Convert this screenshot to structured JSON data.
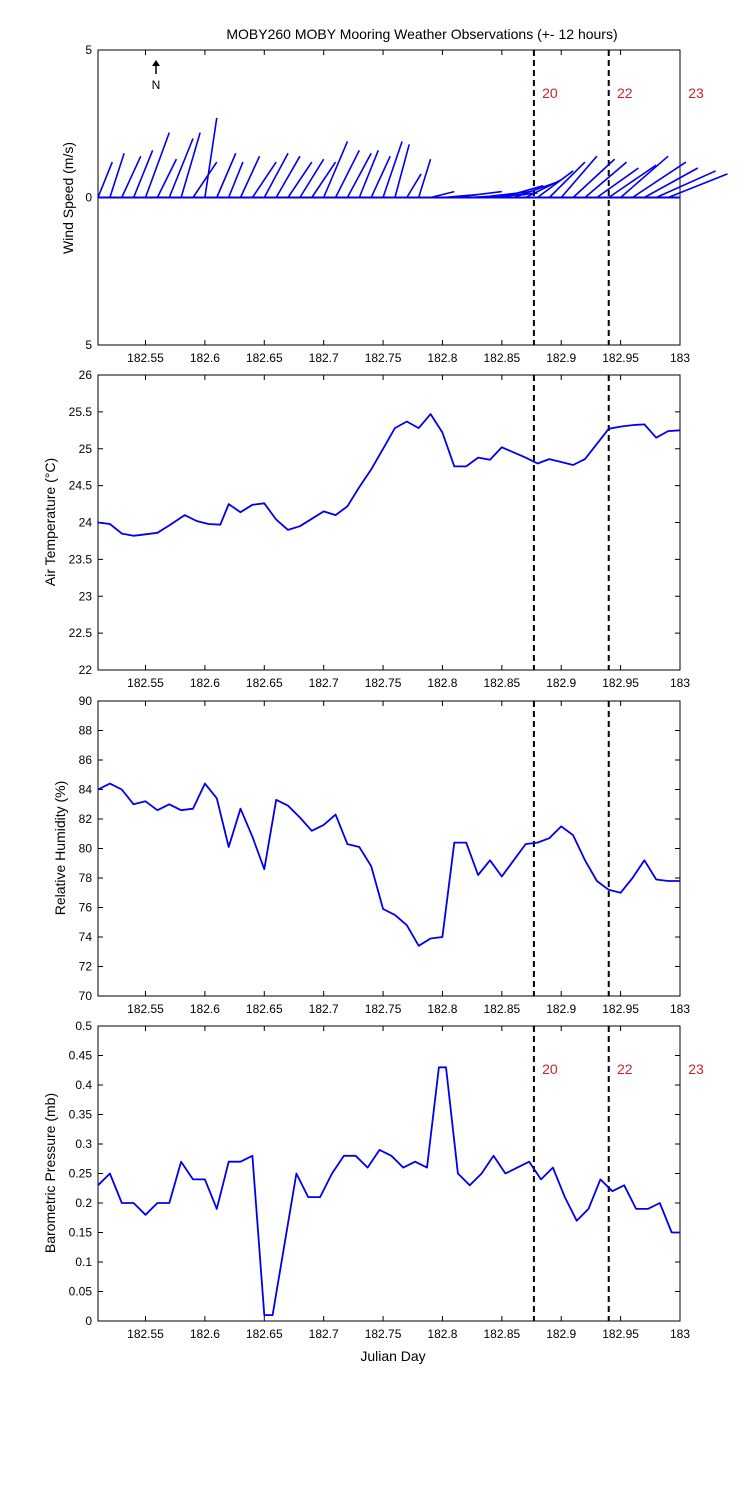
{
  "figure": {
    "title": "MOBY260 MOBY Mooring Weather Observations (+- 12 hours)",
    "xlabel": "Julian Day",
    "north_label": "N"
  },
  "colors": {
    "series": "#0000ee",
    "axis": "#000000",
    "marker_text": "#cc2222",
    "vline": "#000000"
  },
  "chart_data": [
    {
      "id": "wind",
      "type": "line",
      "ylabel": "Wind Speed (m/s)",
      "ylim": [
        -5,
        5
      ],
      "yticks": [
        -5,
        0,
        5
      ],
      "ytick_labels": [
        "5",
        "0",
        "5"
      ],
      "xlim": [
        182.51,
        183
      ],
      "xticks": [
        182.55,
        182.6,
        182.65,
        182.7,
        182.75,
        182.8,
        182.85,
        182.9,
        182.95,
        183
      ],
      "xtick_labels": [
        "182.55",
        "182.6",
        "182.65",
        "182.7",
        "182.75",
        "182.8",
        "182.85",
        "182.9",
        "182.95",
        "183"
      ],
      "note": "wind stick vectors: dx, dy in wind-speed units",
      "x": [
        182.51,
        182.52,
        182.53,
        182.54,
        182.55,
        182.56,
        182.57,
        182.58,
        182.59,
        182.6,
        182.61,
        182.62,
        182.63,
        182.64,
        182.65,
        182.66,
        182.67,
        182.68,
        182.69,
        182.7,
        182.71,
        182.72,
        182.73,
        182.74,
        182.75,
        182.76,
        182.77,
        182.78,
        182.79,
        182.8,
        182.81,
        182.82,
        182.83,
        182.84,
        182.85,
        182.86,
        182.87,
        182.88,
        182.89,
        182.9,
        182.91,
        182.92,
        182.93,
        182.94,
        182.95,
        182.96,
        182.97,
        182.98,
        182.99
      ],
      "u": [
        0.012,
        0.012,
        0.016,
        0.016,
        0.02,
        0.016,
        0.02,
        0.016,
        0.02,
        0.01,
        0.016,
        0.012,
        0.016,
        0.02,
        0.02,
        0.02,
        0.02,
        0.02,
        0.02,
        0.02,
        0.02,
        0.02,
        0.016,
        0.016,
        0.016,
        0.012,
        0.012,
        0.01,
        0.02,
        0.03,
        0.04,
        0.05,
        0.045,
        0.04,
        0.035,
        0.035,
        0.03,
        0.03,
        0.03,
        0.03,
        0.035,
        0.035,
        0.035,
        0.04,
        0.04,
        0.045,
        0.045,
        0.05,
        0.05
      ],
      "v": [
        1.2,
        1.5,
        1.4,
        1.6,
        2.2,
        1.3,
        2.0,
        2.2,
        1.2,
        2.7,
        1.5,
        1.2,
        1.4,
        1.2,
        1.5,
        1.4,
        1.2,
        1.3,
        1.2,
        1.9,
        1.6,
        1.5,
        1.6,
        1.4,
        1.9,
        1.8,
        0.8,
        1.3,
        0.2,
        0.1,
        0.2,
        0.1,
        0.2,
        0.15,
        0.4,
        0.5,
        0.6,
        0.9,
        1.2,
        1.4,
        1.3,
        1.2,
        1.0,
        1.1,
        1.4,
        1.2,
        1.0,
        0.9,
        0.8
      ]
    },
    {
      "id": "air",
      "type": "line",
      "ylabel": "Air Temperature (°C)",
      "ylim": [
        22,
        26
      ],
      "yticks": [
        22,
        22.5,
        23,
        23.5,
        24,
        24.5,
        25,
        25.5,
        26
      ],
      "ytick_labels": [
        "22",
        "22.5",
        "23",
        "23.5",
        "24",
        "24.5",
        "25",
        "25.5",
        "26"
      ],
      "xlim": [
        182.51,
        183
      ],
      "xticks": [
        182.55,
        182.6,
        182.65,
        182.7,
        182.75,
        182.8,
        182.85,
        182.9,
        182.95,
        183
      ],
      "xtick_labels": [
        "182.55",
        "182.6",
        "182.65",
        "182.7",
        "182.75",
        "182.8",
        "182.85",
        "182.9",
        "182.95",
        "183"
      ],
      "x": [
        182.51,
        182.52,
        182.53,
        182.54,
        182.55,
        182.56,
        182.57,
        182.583,
        182.593,
        182.603,
        182.613,
        182.62,
        182.63,
        182.64,
        182.65,
        182.66,
        182.67,
        182.68,
        182.69,
        182.7,
        182.71,
        182.72,
        182.73,
        182.74,
        182.75,
        182.76,
        182.77,
        182.78,
        182.79,
        182.8,
        182.81,
        182.82,
        182.83,
        182.84,
        182.85,
        182.86,
        182.87,
        182.88,
        182.89,
        182.9,
        182.91,
        182.92,
        182.94,
        182.95,
        182.96,
        182.97,
        182.98,
        182.99,
        183.0
      ],
      "y": [
        24.0,
        23.98,
        23.85,
        23.82,
        23.84,
        23.86,
        23.96,
        24.1,
        24.02,
        23.98,
        23.97,
        24.25,
        24.14,
        24.24,
        24.26,
        24.04,
        23.9,
        23.95,
        24.05,
        24.15,
        24.1,
        24.22,
        24.48,
        24.72,
        25.0,
        25.28,
        25.37,
        25.28,
        25.47,
        25.22,
        24.76,
        24.76,
        24.88,
        24.85,
        25.02,
        24.95,
        24.88,
        24.8,
        24.86,
        24.82,
        24.78,
        24.86,
        25.27,
        25.3,
        25.32,
        25.33,
        25.15,
        25.24,
        25.25
      ]
    },
    {
      "id": "rh",
      "type": "line",
      "ylabel": "Relative Humidity (%)",
      "ylim": [
        70,
        90
      ],
      "yticks": [
        70,
        72,
        74,
        76,
        78,
        80,
        82,
        84,
        86,
        88,
        90
      ],
      "ytick_labels": [
        "70",
        "72",
        "74",
        "76",
        "78",
        "80",
        "82",
        "84",
        "86",
        "88",
        "90"
      ],
      "xlim": [
        182.51,
        183
      ],
      "xticks": [
        182.55,
        182.6,
        182.65,
        182.7,
        182.75,
        182.8,
        182.85,
        182.9,
        182.95,
        183
      ],
      "xtick_labels": [
        "182.55",
        "182.6",
        "182.65",
        "182.7",
        "182.75",
        "182.8",
        "182.85",
        "182.9",
        "182.95",
        "183"
      ],
      "x": [
        182.51,
        182.52,
        182.53,
        182.54,
        182.55,
        182.56,
        182.57,
        182.58,
        182.59,
        182.6,
        182.61,
        182.62,
        182.63,
        182.64,
        182.65,
        182.66,
        182.67,
        182.68,
        182.69,
        182.7,
        182.71,
        182.72,
        182.73,
        182.74,
        182.75,
        182.76,
        182.77,
        182.78,
        182.79,
        182.8,
        182.81,
        182.82,
        182.83,
        182.84,
        182.85,
        182.86,
        182.87,
        182.88,
        182.89,
        182.9,
        182.91,
        182.92,
        182.93,
        182.94,
        182.95,
        182.96,
        182.97,
        182.98,
        182.99,
        183.0
      ],
      "y": [
        84.0,
        84.4,
        84.0,
        83.0,
        83.2,
        82.6,
        83.0,
        82.6,
        82.7,
        84.4,
        83.4,
        80.1,
        82.7,
        80.8,
        78.6,
        83.3,
        82.9,
        82.1,
        81.2,
        81.6,
        82.3,
        80.3,
        80.1,
        78.8,
        75.9,
        75.5,
        74.8,
        73.4,
        73.9,
        74.0,
        80.4,
        80.4,
        78.2,
        79.2,
        78.1,
        79.2,
        80.3,
        80.4,
        80.7,
        81.5,
        80.9,
        79.2,
        77.8,
        77.2,
        77.0,
        78.0,
        79.2,
        77.9,
        77.8,
        77.8
      ]
    },
    {
      "id": "baro",
      "type": "line",
      "ylabel": "Barometric Pressure (mb)",
      "ylim": [
        0,
        0.5
      ],
      "yticks": [
        0,
        0.05,
        0.1,
        0.15,
        0.2,
        0.25,
        0.3,
        0.35,
        0.4,
        0.45,
        0.5
      ],
      "ytick_labels": [
        "0",
        "0.05",
        "0.1",
        "0.15",
        "0.2",
        "0.25",
        "0.3",
        "0.35",
        "0.4",
        "0.45",
        "0.5"
      ],
      "xlim": [
        182.51,
        183
      ],
      "xticks": [
        182.55,
        182.6,
        182.65,
        182.7,
        182.75,
        182.8,
        182.85,
        182.9,
        182.95,
        183
      ],
      "xtick_labels": [
        "182.55",
        "182.6",
        "182.65",
        "182.7",
        "182.75",
        "182.8",
        "182.85",
        "182.9",
        "182.95",
        "183"
      ],
      "x": [
        182.51,
        182.52,
        182.53,
        182.54,
        182.55,
        182.56,
        182.57,
        182.58,
        182.59,
        182.6,
        182.61,
        182.62,
        182.63,
        182.64,
        182.65,
        182.657,
        182.667,
        182.677,
        182.687,
        182.697,
        182.707,
        182.717,
        182.727,
        182.737,
        182.747,
        182.757,
        182.767,
        182.777,
        182.787,
        182.797,
        182.803,
        182.813,
        182.823,
        182.833,
        182.843,
        182.853,
        182.863,
        182.873,
        182.883,
        182.893,
        182.903,
        182.913,
        182.923,
        182.933,
        182.943,
        182.953,
        182.963,
        182.973,
        182.983,
        182.993,
        183.0
      ],
      "y": [
        0.23,
        0.25,
        0.2,
        0.2,
        0.18,
        0.2,
        0.2,
        0.27,
        0.24,
        0.24,
        0.19,
        0.27,
        0.27,
        0.28,
        0.01,
        0.01,
        0.13,
        0.25,
        0.21,
        0.21,
        0.25,
        0.28,
        0.28,
        0.26,
        0.29,
        0.28,
        0.26,
        0.27,
        0.26,
        0.43,
        0.43,
        0.25,
        0.23,
        0.25,
        0.28,
        0.25,
        0.26,
        0.27,
        0.24,
        0.26,
        0.21,
        0.17,
        0.19,
        0.24,
        0.22,
        0.23,
        0.19,
        0.19,
        0.2,
        0.15,
        0.15
      ]
    }
  ],
  "markers": {
    "vlines_x": [
      182.877,
      182.94
    ],
    "labels": [
      {
        "x": 182.877,
        "text": "20"
      },
      {
        "x": 182.94,
        "text": "22"
      },
      {
        "x": 183.0,
        "text": "23"
      }
    ]
  }
}
